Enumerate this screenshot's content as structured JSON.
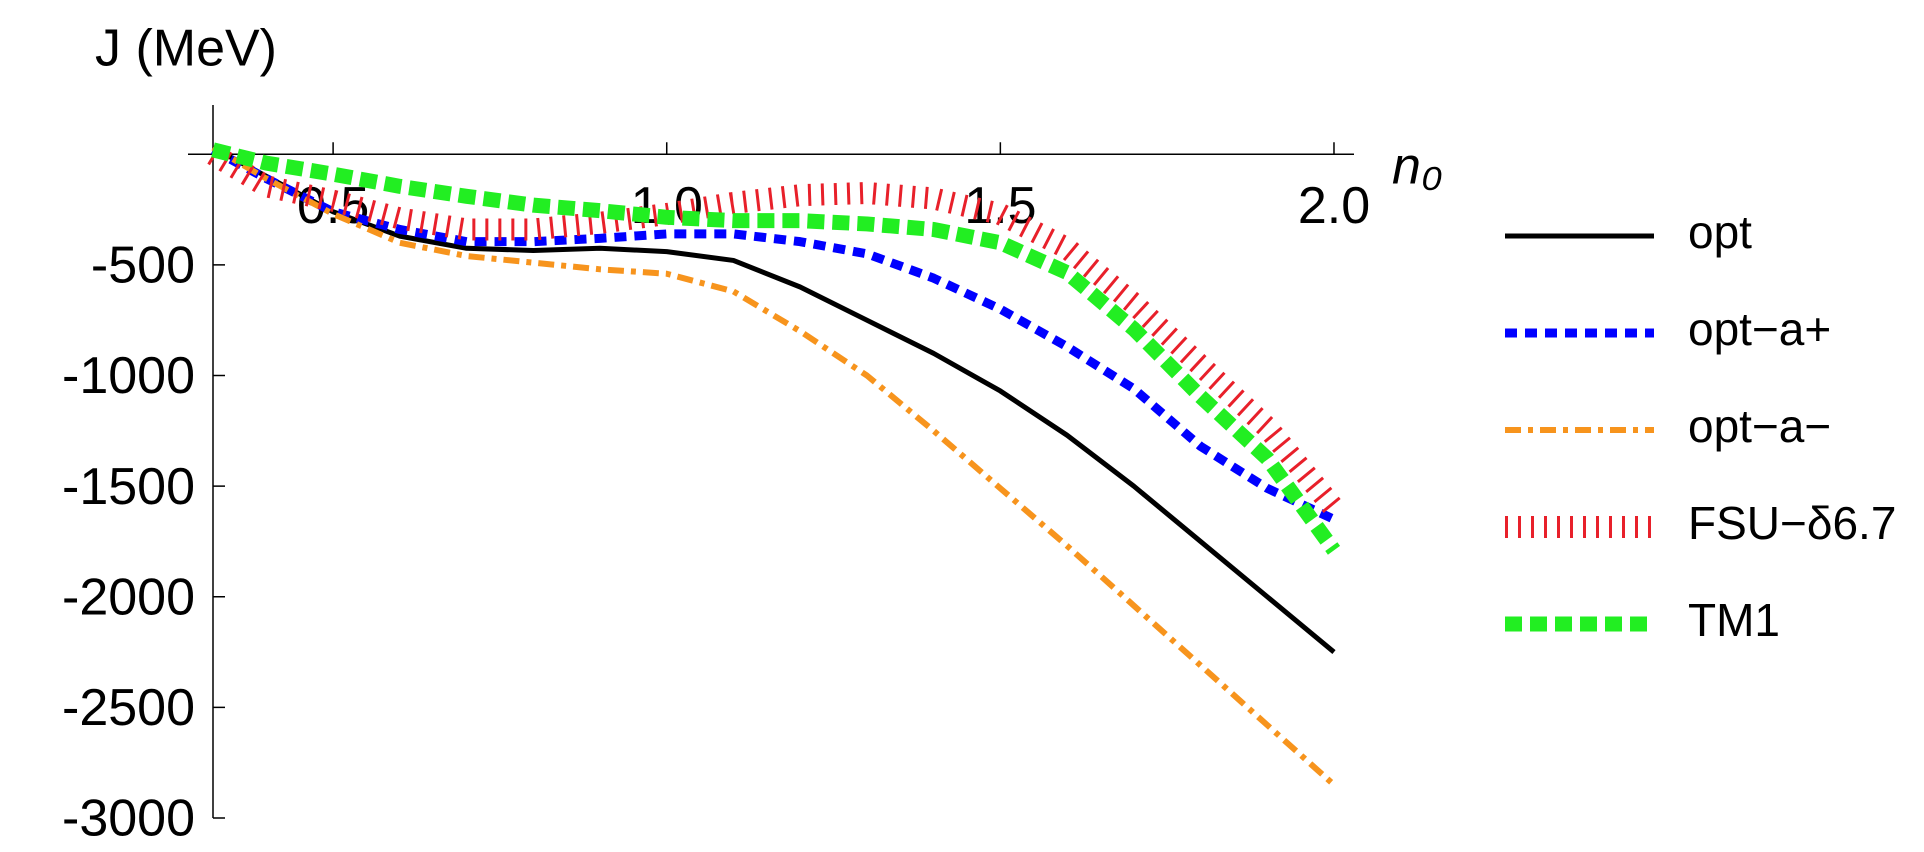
{
  "chart_data": {
    "type": "line",
    "ylabel": "J (MeV)",
    "xlabel": "n₀",
    "x": [
      0.32,
      0.4,
      0.5,
      0.6,
      0.7,
      0.8,
      0.9,
      1.0,
      1.1,
      1.2,
      1.3,
      1.4,
      1.5,
      1.6,
      1.7,
      1.8,
      1.9,
      2.0
    ],
    "series": [
      {
        "name": "opt",
        "color": "#000000",
        "values": [
          30,
          -100,
          -260,
          -370,
          -425,
          -435,
          -425,
          -440,
          -480,
          -600,
          -750,
          -900,
          -1070,
          -1270,
          -1500,
          -1750,
          -2000,
          -2250
        ]
      },
      {
        "name": "opt−a+",
        "color": "#0000ff",
        "values": [
          20,
          -110,
          -260,
          -340,
          -395,
          -395,
          -380,
          -360,
          -360,
          -395,
          -450,
          -560,
          -700,
          -870,
          -1060,
          -1320,
          -1510,
          -1650
        ]
      },
      {
        "name": "opt−a−",
        "color": "#f7941d",
        "values": [
          30,
          -110,
          -270,
          -400,
          -460,
          -490,
          -520,
          -540,
          -620,
          -800,
          -1000,
          -1250,
          -1510,
          -1770,
          -2040,
          -2310,
          -2580,
          -2850
        ]
      },
      {
        "name": "FSU−δ6.7",
        "color": "#e8202a",
        "values": [
          0,
          -145,
          -210,
          -290,
          -340,
          -340,
          -310,
          -270,
          -220,
          -185,
          -175,
          -200,
          -270,
          -425,
          -675,
          -955,
          -1235,
          -1600
        ]
      },
      {
        "name": "TM1",
        "color": "#22ee22",
        "values": [
          20,
          -40,
          -90,
          -145,
          -190,
          -230,
          -255,
          -285,
          -300,
          -300,
          -315,
          -340,
          -400,
          -535,
          -790,
          -1095,
          -1375,
          -1790
        ]
      }
    ],
    "xlim": [
      0.32,
      2.03
    ],
    "ylim": [
      -3000,
      200
    ],
    "xticks": [
      0.5,
      {
        "value": 1,
        "label": "1.0"
      },
      1.5,
      {
        "value": 2,
        "label": "2.0"
      }
    ],
    "yticks": [
      -500,
      -1000,
      -1500,
      -2000,
      -2500,
      -3000
    ]
  }
}
